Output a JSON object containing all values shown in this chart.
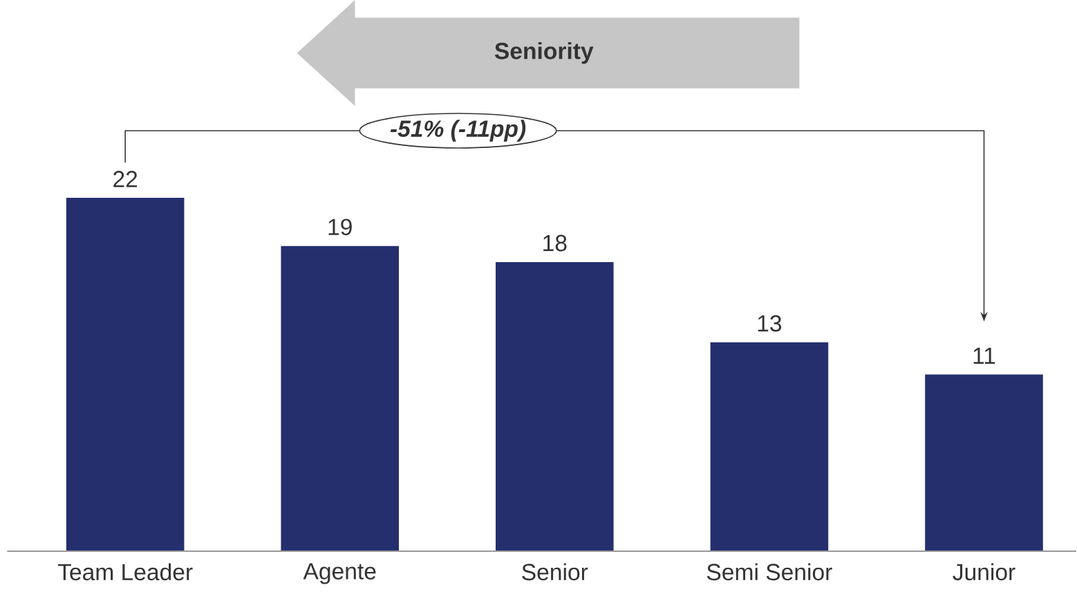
{
  "chart_data": {
    "type": "bar",
    "categories": [
      "Team Leader",
      "Agente",
      "Senior",
      "Semi Senior",
      "Junior"
    ],
    "values": [
      22,
      19,
      18,
      13,
      11
    ],
    "color": "#252f6e",
    "data_labels": true,
    "annotations": [
      "Seniority",
      "-51% (-11pp)"
    ]
  }
}
